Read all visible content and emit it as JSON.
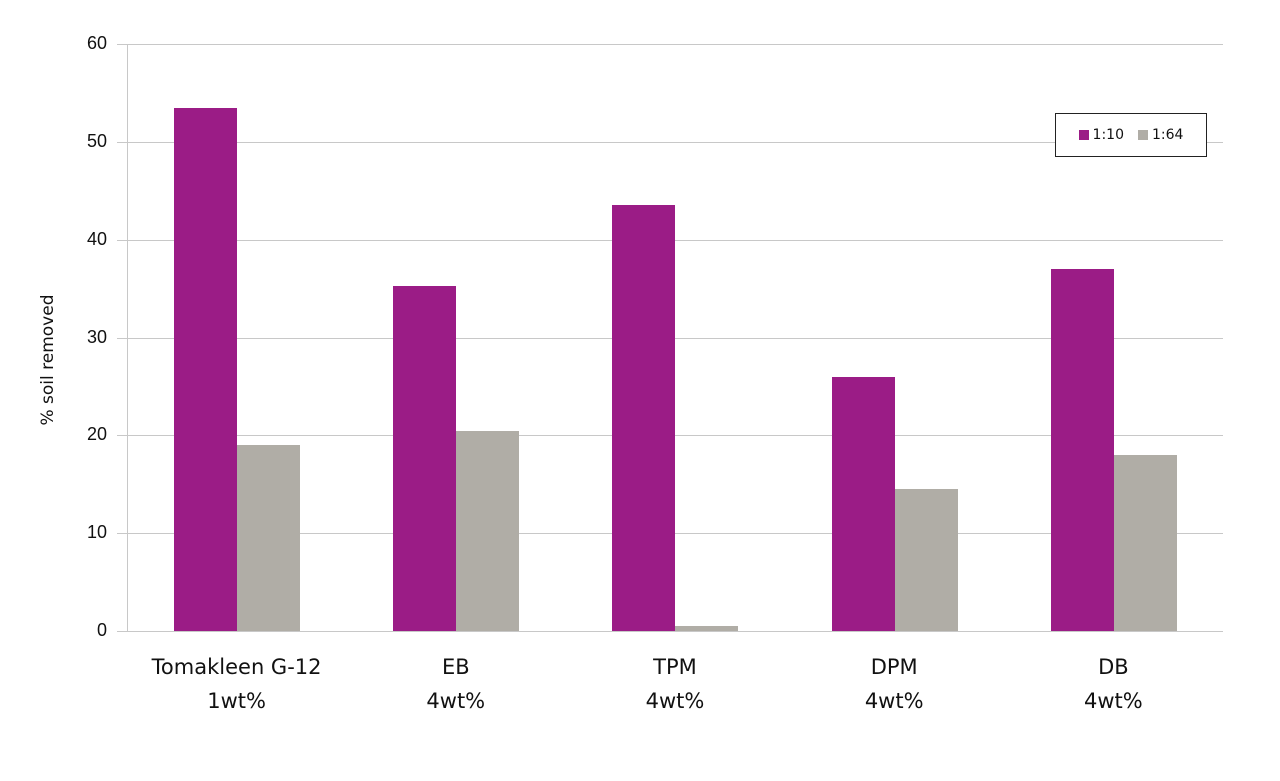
{
  "chart_data": {
    "type": "bar",
    "title": "",
    "xlabel": "",
    "ylabel": "% soil removed",
    "ylim": [
      0,
      60
    ],
    "yticks": [
      0,
      10,
      20,
      30,
      40,
      50,
      60
    ],
    "grid": true,
    "legend_position": "top-right",
    "categories": [
      [
        "Tomakleen G-12",
        "1wt%"
      ],
      [
        "EB",
        "4wt%"
      ],
      [
        "TPM",
        "4wt%"
      ],
      [
        "DPM",
        "4wt%"
      ],
      [
        "DB",
        "4wt%"
      ]
    ],
    "series": [
      {
        "name": "1:10",
        "color": "#9b1c86",
        "values": [
          53.5,
          35.3,
          43.5,
          26.0,
          37.0
        ]
      },
      {
        "name": "1:64",
        "color": "#b0ada6",
        "values": [
          19.0,
          20.4,
          0.5,
          14.5,
          18.0
        ]
      }
    ]
  }
}
